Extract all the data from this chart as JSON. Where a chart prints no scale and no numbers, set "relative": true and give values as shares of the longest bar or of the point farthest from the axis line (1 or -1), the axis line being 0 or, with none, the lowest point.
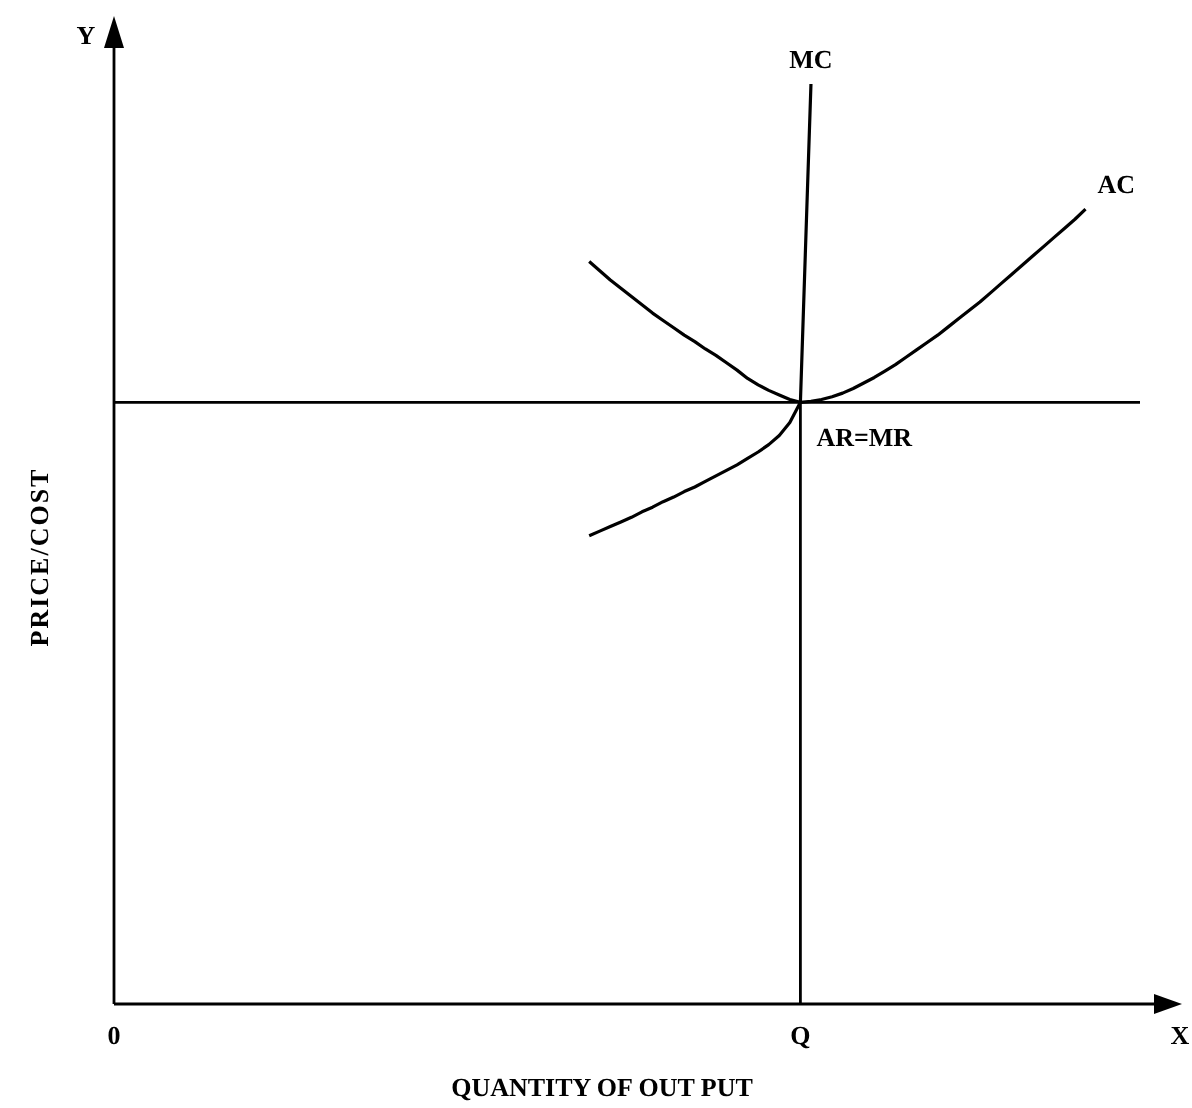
{
  "chart_data": {
    "type": "line",
    "relative": true,
    "xlabel": "QUANTITY OF OUT PUT",
    "ylabel": "PRICE/COST",
    "categories": [
      "0",
      null,
      null,
      null,
      null,
      null,
      null,
      null,
      null,
      null,
      null,
      null,
      null,
      null,
      null,
      null,
      null,
      null,
      null,
      null,
      null,
      null,
      null,
      null,
      null,
      null,
      null,
      null,
      null,
      null,
      null,
      null,
      null,
      null,
      null,
      null,
      null,
      null,
      null,
      null,
      null,
      null,
      null,
      null,
      null,
      null,
      null,
      null,
      null,
      null,
      null,
      null,
      null,
      null,
      null,
      null,
      null,
      null,
      null,
      null,
      null,
      null,
      null,
      null,
      null,
      "Q",
      null,
      null,
      null,
      null,
      null,
      null,
      null,
      null,
      null,
      null,
      null,
      null,
      null,
      null,
      null,
      null,
      null,
      null,
      null,
      null,
      null,
      null,
      null,
      null,
      null,
      null,
      null,
      null,
      null,
      null,
      null,
      null,
      null,
      null,
      null
    ],
    "tick_labels": "x",
    "marker": "none",
    "line_style": "solid",
    "annotations": [
      "Y",
      "X"
    ],
    "ref_lines": [
      {
        "axis": "y",
        "value": 0.654,
        "label": "AR=MR",
        "color": "#000000"
      },
      {
        "axis": "x",
        "value": "Q",
        "color": "#000000"
      }
    ],
    "series": [
      {
        "name": "MC",
        "color": "#000000",
        "values": [
          null,
          null,
          null,
          null,
          null,
          null,
          null,
          null,
          null,
          null,
          null,
          null,
          null,
          null,
          null,
          null,
          null,
          null,
          null,
          null,
          null,
          null,
          null,
          null,
          null,
          null,
          null,
          null,
          null,
          null,
          null,
          null,
          null,
          null,
          null,
          null,
          null,
          null,
          null,
          null,
          null,
          null,
          null,
          null,
          null,
          0.509,
          0.514,
          0.519,
          0.524,
          0.529,
          0.535,
          0.54,
          0.546,
          0.551,
          0.557,
          0.562,
          0.568,
          0.574,
          0.58,
          0.586,
          0.593,
          0.6,
          0.608,
          0.618,
          0.632,
          0.654,
          1.0,
          null,
          null,
          null,
          null,
          null,
          null,
          null,
          null,
          null,
          null,
          null,
          null,
          null,
          null,
          null,
          null,
          null,
          null,
          null,
          null,
          null,
          null,
          null,
          null,
          null,
          null,
          null,
          null,
          null,
          null,
          null,
          null,
          null,
          null
        ]
      },
      {
        "name": "AC",
        "color": "#000000",
        "values": [
          null,
          null,
          null,
          null,
          null,
          null,
          null,
          null,
          null,
          null,
          null,
          null,
          null,
          null,
          null,
          null,
          null,
          null,
          null,
          null,
          null,
          null,
          null,
          null,
          null,
          null,
          null,
          null,
          null,
          null,
          null,
          null,
          null,
          null,
          null,
          null,
          null,
          null,
          null,
          null,
          null,
          null,
          null,
          null,
          null,
          0.807,
          0.797,
          0.787,
          0.778,
          0.769,
          0.76,
          0.751,
          0.743,
          0.735,
          0.727,
          0.72,
          0.712,
          0.705,
          0.697,
          0.689,
          0.68,
          0.673,
          0.667,
          0.662,
          0.657,
          0.654,
          0.655,
          0.657,
          0.66,
          0.664,
          0.669,
          0.675,
          0.681,
          0.688,
          0.695,
          0.703,
          0.711,
          0.719,
          0.727,
          0.736,
          0.745,
          0.754,
          0.763,
          0.773,
          0.783,
          0.793,
          0.803,
          0.813,
          0.823,
          0.833,
          0.843,
          0.853,
          0.864,
          null,
          null,
          null,
          null,
          null,
          null,
          null,
          null
        ]
      }
    ]
  }
}
